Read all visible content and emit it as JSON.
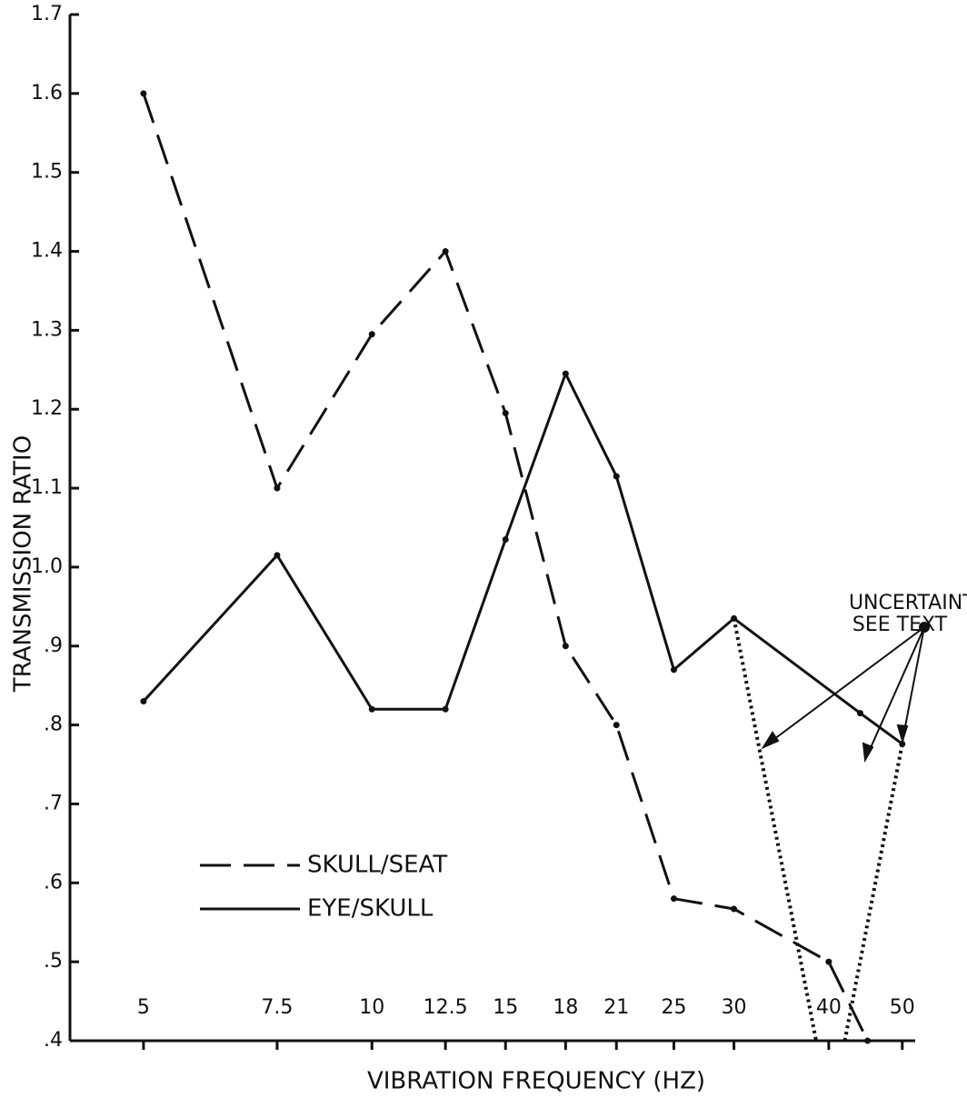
{
  "chart_data": {
    "type": "line",
    "xlabel": "VIBRATION FREQUENCY (HZ)",
    "ylabel": "TRANSMISSION RATIO",
    "xscale": "log",
    "xlim": [
      4,
      52
    ],
    "xticks": [
      5,
      7.5,
      10,
      12.5,
      15,
      18,
      21,
      25,
      30,
      40,
      50
    ],
    "ylim": [
      0.4,
      1.7
    ],
    "yticks": [
      1.7,
      1.6,
      1.5,
      1.4,
      1.3,
      1.2,
      1.1,
      {
        "value": 1,
        "label": "1.0"
      },
      {
        "value": 0.9,
        "label": ".9"
      },
      {
        "value": 0.8,
        "label": ".8"
      },
      {
        "value": 0.7,
        "label": ".7"
      },
      {
        "value": 0.6,
        "label": ".6"
      },
      {
        "value": 0.5,
        "label": ".5"
      },
      {
        "value": 0.4,
        "label": ".4"
      }
    ],
    "series": [
      {
        "name": "SKULL/SEAT",
        "color": "#111111",
        "dash": "dashed",
        "x": [
          5,
          7.5,
          10,
          12.5,
          15,
          18,
          21,
          25,
          30,
          40,
          45
        ],
        "values": [
          1.6,
          1.1,
          1.295,
          1.4,
          1.195,
          0.9,
          0.8,
          0.58,
          0.567,
          0.5,
          0.4
        ]
      },
      {
        "name": "EYE/SKULL",
        "color": "#111111",
        "dash": "solid",
        "x": [
          5,
          7.5,
          10,
          12.5,
          15,
          18,
          21,
          25,
          30,
          44,
          50
        ],
        "values": [
          0.83,
          1.015,
          0.82,
          0.82,
          1.035,
          1.245,
          1.115,
          0.87,
          0.935,
          0.815,
          0.776
        ]
      }
    ],
    "uncertainty": [
      {
        "x": [
          30,
          38.5
        ],
        "values": [
          0.935,
          0.4
        ]
      },
      {
        "x": [
          42,
          50
        ],
        "values": [
          0.4,
          0.776
        ]
      }
    ],
    "annotation": [
      "UNCERTAINTY",
      "SEE TEXT"
    ]
  }
}
